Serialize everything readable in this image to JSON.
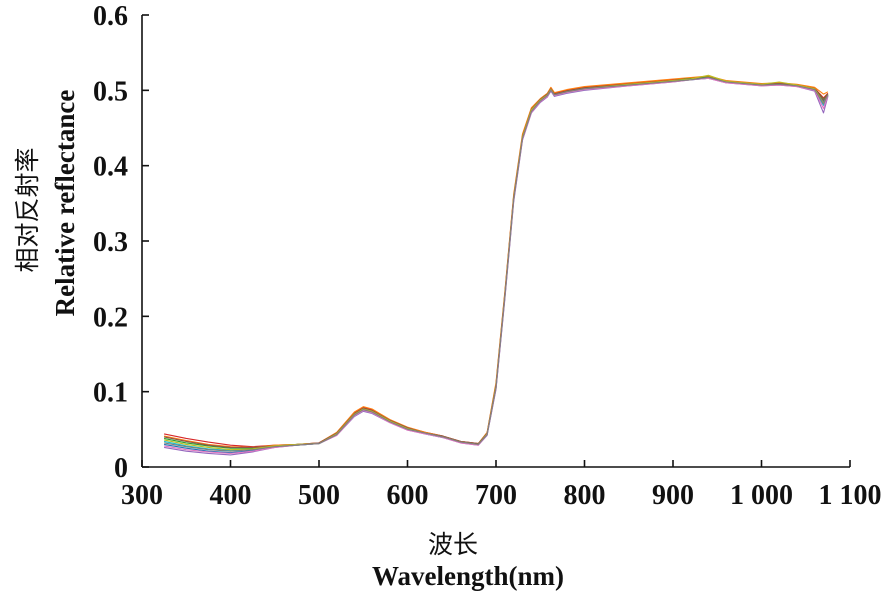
{
  "chart_data": {
    "type": "line",
    "xlabel_cn": "波长",
    "xlabel": "Wavelength(nm)",
    "ylabel_cn": "相对反射率",
    "ylabel": "Relative reflectance",
    "xlim": [
      300,
      1100
    ],
    "ylim": [
      0,
      0.6
    ],
    "xticks": [
      300,
      400,
      500,
      600,
      700,
      800,
      900,
      1000,
      1100
    ],
    "xtick_labels": [
      "300",
      "400",
      "500",
      "600",
      "700",
      "800",
      "900",
      "1 000",
      "1 100"
    ],
    "yticks": [
      0,
      0.1,
      0.2,
      0.3,
      0.4,
      0.5,
      0.6
    ],
    "ytick_labels": [
      "0",
      "0.1",
      "0.2",
      "0.3",
      "0.4",
      "0.5",
      "0.6"
    ],
    "grid": false,
    "legend": "none",
    "x": [
      325,
      350,
      375,
      400,
      425,
      450,
      475,
      500,
      520,
      540,
      550,
      560,
      580,
      600,
      620,
      640,
      660,
      680,
      690,
      700,
      710,
      720,
      730,
      740,
      750,
      758,
      762,
      766,
      780,
      800,
      850,
      900,
      920,
      940,
      960,
      980,
      1000,
      1020,
      1040,
      1060,
      1070,
      1075
    ],
    "series": [
      {
        "color": "#d62728",
        "values": [
          0.044,
          0.038,
          0.033,
          0.029,
          0.027,
          0.029,
          0.03,
          0.032,
          0.045,
          0.072,
          0.079,
          0.076,
          0.062,
          0.052,
          0.046,
          0.041,
          0.034,
          0.031,
          0.045,
          0.11,
          0.23,
          0.36,
          0.44,
          0.475,
          0.488,
          0.495,
          0.503,
          0.496,
          0.5,
          0.504,
          0.509,
          0.514,
          0.516,
          0.518,
          0.512,
          0.51,
          0.508,
          0.509,
          0.507,
          0.503,
          0.49,
          0.496
        ]
      },
      {
        "color": "#1f77b4",
        "values": [
          0.03,
          0.025,
          0.021,
          0.019,
          0.022,
          0.027,
          0.029,
          0.031,
          0.043,
          0.069,
          0.076,
          0.073,
          0.06,
          0.05,
          0.045,
          0.04,
          0.033,
          0.03,
          0.043,
          0.105,
          0.225,
          0.355,
          0.436,
          0.472,
          0.486,
          0.493,
          0.501,
          0.494,
          0.498,
          0.502,
          0.507,
          0.512,
          0.515,
          0.517,
          0.511,
          0.509,
          0.507,
          0.508,
          0.506,
          0.501,
          0.485,
          0.494
        ]
      },
      {
        "color": "#2ca02c",
        "values": [
          0.038,
          0.032,
          0.028,
          0.025,
          0.025,
          0.028,
          0.03,
          0.031,
          0.044,
          0.07,
          0.077,
          0.074,
          0.061,
          0.051,
          0.045,
          0.04,
          0.033,
          0.03,
          0.044,
          0.108,
          0.228,
          0.358,
          0.438,
          0.474,
          0.487,
          0.494,
          0.502,
          0.495,
          0.499,
          0.503,
          0.508,
          0.513,
          0.516,
          0.518,
          0.512,
          0.51,
          0.508,
          0.509,
          0.507,
          0.502,
          0.488,
          0.495
        ]
      },
      {
        "color": "#9467bd",
        "values": [
          0.026,
          0.021,
          0.018,
          0.016,
          0.02,
          0.026,
          0.029,
          0.031,
          0.042,
          0.067,
          0.074,
          0.071,
          0.059,
          0.049,
          0.044,
          0.039,
          0.032,
          0.029,
          0.042,
          0.103,
          0.222,
          0.352,
          0.434,
          0.47,
          0.484,
          0.491,
          0.499,
          0.492,
          0.496,
          0.5,
          0.506,
          0.511,
          0.514,
          0.516,
          0.51,
          0.508,
          0.506,
          0.507,
          0.505,
          0.499,
          0.47,
          0.492
        ]
      },
      {
        "color": "#ff7f0e",
        "values": [
          0.041,
          0.035,
          0.03,
          0.027,
          0.026,
          0.029,
          0.03,
          0.032,
          0.046,
          0.073,
          0.08,
          0.077,
          0.063,
          0.053,
          0.046,
          0.041,
          0.034,
          0.031,
          0.046,
          0.112,
          0.232,
          0.362,
          0.442,
          0.477,
          0.489,
          0.496,
          0.504,
          0.497,
          0.501,
          0.505,
          0.51,
          0.515,
          0.517,
          0.519,
          0.513,
          0.511,
          0.509,
          0.51,
          0.508,
          0.504,
          0.495,
          0.498
        ]
      },
      {
        "color": "#17becf",
        "values": [
          0.034,
          0.028,
          0.024,
          0.022,
          0.023,
          0.027,
          0.029,
          0.031,
          0.043,
          0.068,
          0.075,
          0.072,
          0.06,
          0.05,
          0.044,
          0.039,
          0.033,
          0.03,
          0.044,
          0.106,
          0.226,
          0.356,
          0.437,
          0.473,
          0.486,
          0.493,
          0.5,
          0.493,
          0.497,
          0.501,
          0.507,
          0.512,
          0.514,
          0.516,
          0.511,
          0.509,
          0.507,
          0.508,
          0.506,
          0.5,
          0.48,
          0.493
        ]
      },
      {
        "color": "#8c564b",
        "values": [
          0.04,
          0.034,
          0.029,
          0.026,
          0.026,
          0.028,
          0.03,
          0.032,
          0.045,
          0.071,
          0.078,
          0.075,
          0.062,
          0.052,
          0.045,
          0.041,
          0.034,
          0.031,
          0.045,
          0.109,
          0.229,
          0.359,
          0.439,
          0.475,
          0.488,
          0.495,
          0.502,
          0.495,
          0.499,
          0.503,
          0.508,
          0.513,
          0.515,
          0.517,
          0.512,
          0.51,
          0.508,
          0.509,
          0.507,
          0.502,
          0.487,
          0.495
        ]
      },
      {
        "color": "#bcbd22",
        "values": [
          0.036,
          0.03,
          0.026,
          0.023,
          0.024,
          0.028,
          0.03,
          0.031,
          0.044,
          0.07,
          0.077,
          0.074,
          0.061,
          0.051,
          0.045,
          0.04,
          0.033,
          0.03,
          0.044,
          0.107,
          0.227,
          0.357,
          0.438,
          0.474,
          0.487,
          0.494,
          0.501,
          0.494,
          0.498,
          0.502,
          0.508,
          0.513,
          0.515,
          0.52,
          0.512,
          0.51,
          0.508,
          0.511,
          0.507,
          0.502,
          0.483,
          0.494
        ]
      },
      {
        "color": "#e377c2",
        "values": [
          0.028,
          0.023,
          0.02,
          0.018,
          0.021,
          0.026,
          0.029,
          0.031,
          0.042,
          0.068,
          0.075,
          0.072,
          0.059,
          0.049,
          0.044,
          0.039,
          0.032,
          0.029,
          0.043,
          0.104,
          0.224,
          0.354,
          0.435,
          0.471,
          0.485,
          0.492,
          0.5,
          0.493,
          0.497,
          0.501,
          0.506,
          0.511,
          0.514,
          0.516,
          0.51,
          0.508,
          0.506,
          0.507,
          0.505,
          0.5,
          0.476,
          0.493
        ]
      },
      {
        "color": "#7f7f7f",
        "values": [
          0.032,
          0.027,
          0.023,
          0.021,
          0.023,
          0.027,
          0.029,
          0.031,
          0.043,
          0.069,
          0.076,
          0.073,
          0.06,
          0.05,
          0.045,
          0.04,
          0.033,
          0.03,
          0.043,
          0.105,
          0.225,
          0.355,
          0.436,
          0.472,
          0.486,
          0.493,
          0.5,
          0.494,
          0.498,
          0.502,
          0.507,
          0.512,
          0.514,
          0.517,
          0.511,
          0.509,
          0.507,
          0.508,
          0.506,
          0.501,
          0.482,
          0.494
        ]
      }
    ]
  }
}
